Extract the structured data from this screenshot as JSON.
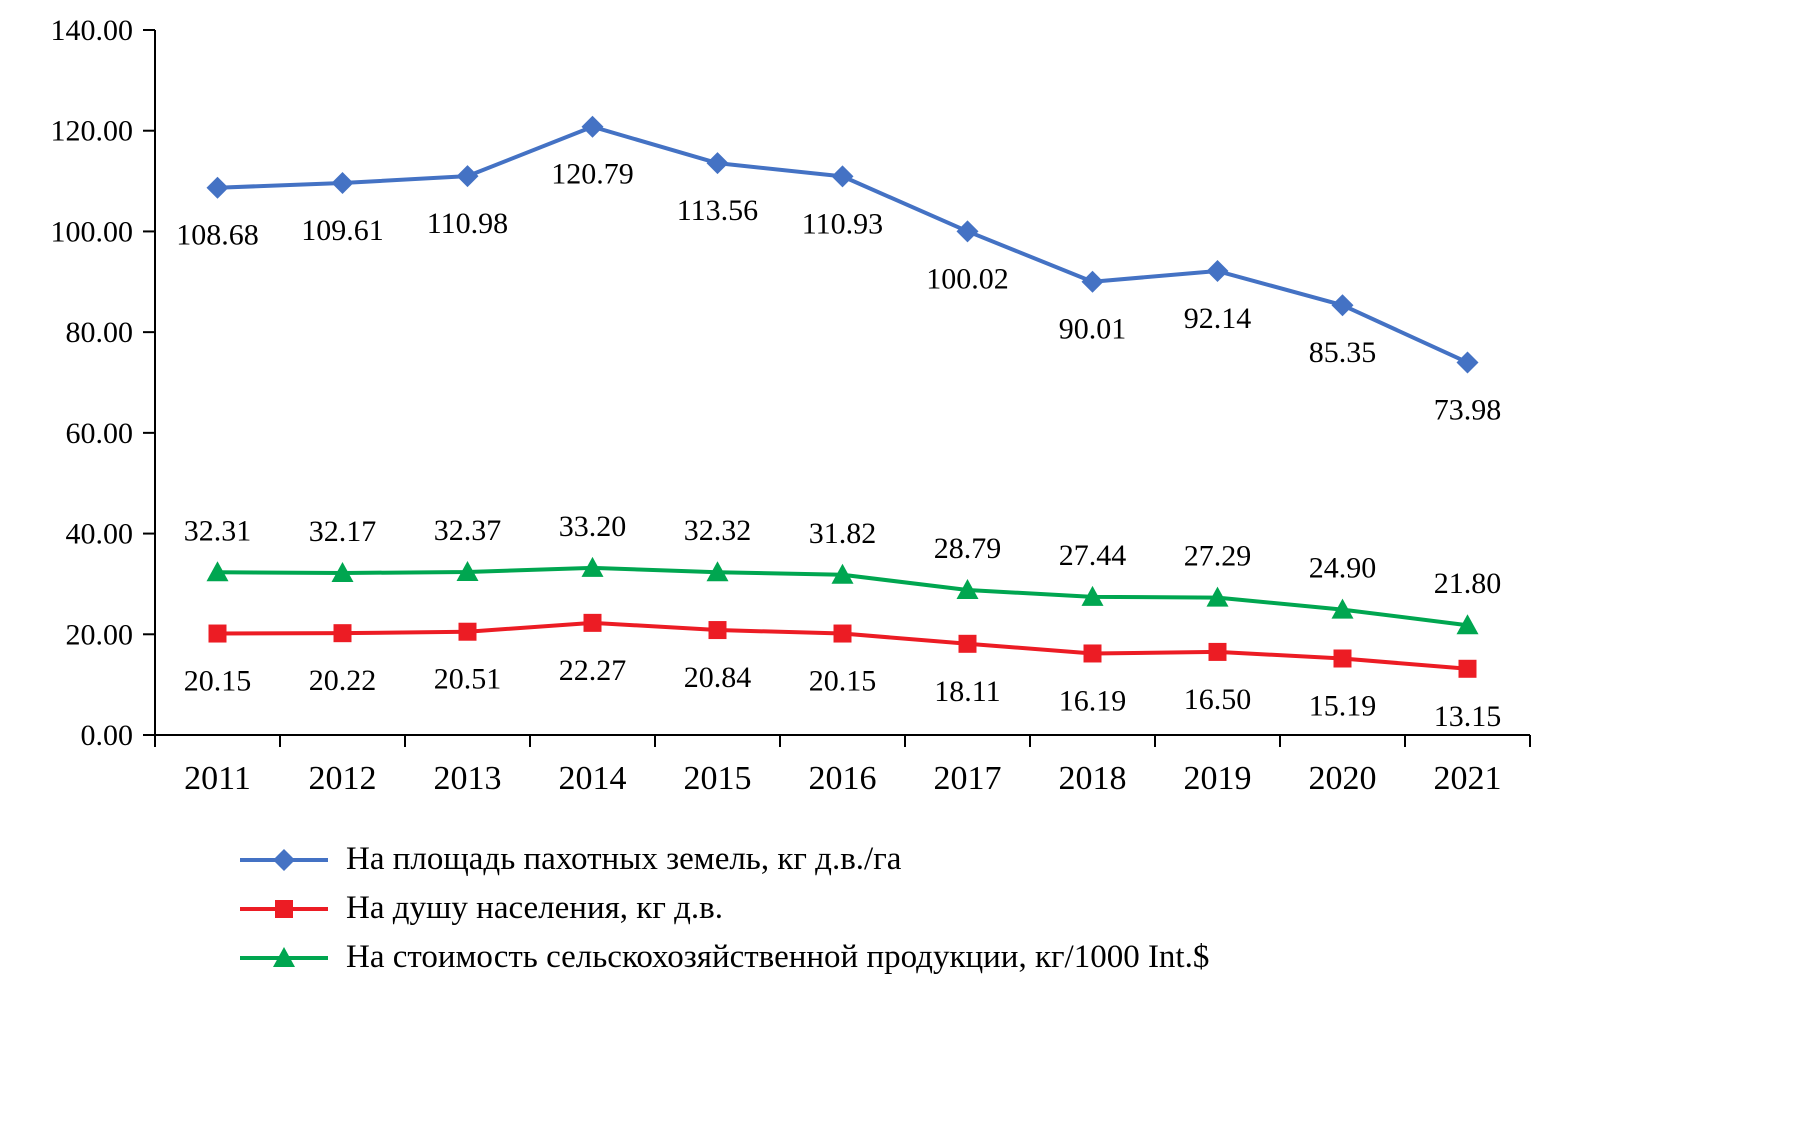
{
  "chart_data": {
    "type": "line",
    "title": "",
    "xlabel": "",
    "ylabel": "",
    "grid": false,
    "legend_position": "bottom-left",
    "ylim": [
      0,
      140
    ],
    "y_tick_step": 20,
    "y_ticks": [
      "0.00",
      "20.00",
      "40.00",
      "60.00",
      "80.00",
      "100.00",
      "120.00",
      "140.00"
    ],
    "x": [
      "2011",
      "2012",
      "2013",
      "2014",
      "2015",
      "2016",
      "2017",
      "2018",
      "2019",
      "2020",
      "2021"
    ],
    "axis_color": "#000000",
    "series": [
      {
        "name": "На площадь пахотных земель, кг д.в./га",
        "color": "#4472C4",
        "marker": "diamond",
        "label_position": "below",
        "values": [
          108.68,
          109.61,
          110.98,
          120.79,
          113.56,
          110.93,
          100.02,
          90.01,
          92.14,
          85.35,
          73.98
        ],
        "labels": [
          "108.68",
          "109.61",
          "110.98",
          "120.79",
          "113.56",
          "110.93",
          "100.02",
          "90.01",
          "92.14",
          "85.35",
          "73.98"
        ]
      },
      {
        "name": "На душу населения, кг д.в.",
        "color": "#EC1C24",
        "marker": "square",
        "label_position": "below",
        "values": [
          20.15,
          20.22,
          20.51,
          22.27,
          20.84,
          20.15,
          18.11,
          16.19,
          16.5,
          15.19,
          13.15
        ],
        "labels": [
          "20.15",
          "20.22",
          "20.51",
          "22.27",
          "20.84",
          "20.15",
          "18.11",
          "16.19",
          "16.50",
          "15.19",
          "13.15"
        ]
      },
      {
        "name": "На стоимость сельскохозяйственной продукции, кг/1000 Int.$",
        "color": "#00A650",
        "marker": "triangle",
        "label_position": "above",
        "values": [
          32.31,
          32.17,
          32.37,
          33.2,
          32.32,
          31.82,
          28.79,
          27.44,
          27.29,
          24.9,
          21.8
        ],
        "labels": [
          "32.31",
          "32.17",
          "32.37",
          "33.20",
          "32.32",
          "31.82",
          "28.79",
          "27.44",
          "27.29",
          "24.90",
          "21.80"
        ]
      }
    ]
  }
}
